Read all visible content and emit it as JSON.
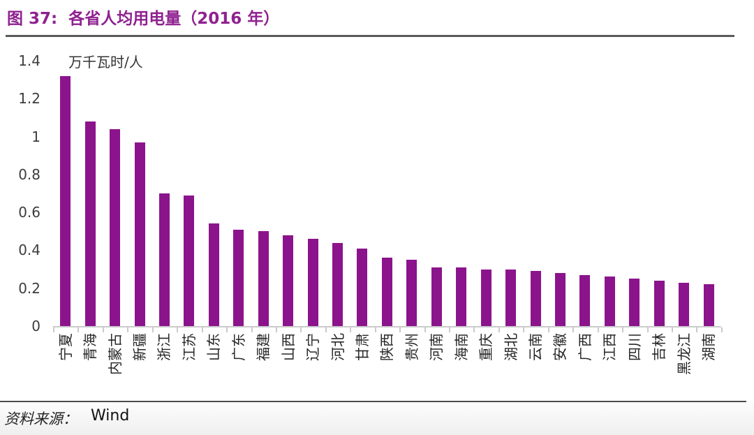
{
  "header": {
    "title": "图 37:  各省人均用电量（2016 年）"
  },
  "footer": {
    "source_label": "资料来源：",
    "source_value": "Wind"
  },
  "chart_data": {
    "type": "bar",
    "title": "各省人均用电量（2016 年）",
    "xlabel": "",
    "ylabel": "万千瓦时/人",
    "categories": [
      "宁夏",
      "青海",
      "内蒙古",
      "新疆",
      "浙江",
      "江苏",
      "山东",
      "广东",
      "福建",
      "山西",
      "辽宁",
      "河北",
      "甘肃",
      "陕西",
      "贵州",
      "河南",
      "海南",
      "重庆",
      "湖北",
      "云南",
      "安徽",
      "广西",
      "江西",
      "四川",
      "吉林",
      "黑龙江",
      "湖南"
    ],
    "values": [
      1.32,
      1.08,
      1.04,
      0.97,
      0.7,
      0.69,
      0.54,
      0.51,
      0.5,
      0.48,
      0.46,
      0.44,
      0.41,
      0.36,
      0.35,
      0.31,
      0.31,
      0.3,
      0.3,
      0.29,
      0.28,
      0.27,
      0.26,
      0.25,
      0.24,
      0.23,
      0.22
    ],
    "ylim": [
      0,
      1.4
    ],
    "yticks": [
      0,
      0.2,
      0.4,
      0.6,
      0.8,
      1,
      1.2,
      1.4
    ],
    "ytick_labels": [
      "0",
      "0.2",
      "0.4",
      "0.6",
      "0.8",
      "1",
      "1.2",
      "1.4"
    ],
    "bar_color": "#8B148C",
    "grid": "off",
    "legend": "none",
    "xtick_rotation": -90
  }
}
